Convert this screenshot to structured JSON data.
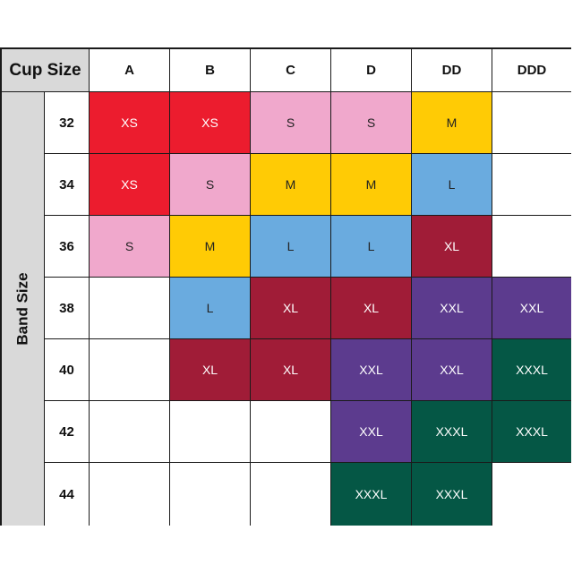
{
  "corner_label": "Cup Size",
  "band_label": "Band Size",
  "cups": [
    "A",
    "B",
    "C",
    "D",
    "DD",
    "DDD"
  ],
  "bands": [
    "32",
    "34",
    "36",
    "38",
    "40",
    "42",
    "44"
  ],
  "grid": [
    [
      "XS",
      "XS",
      "S",
      "S",
      "M",
      ""
    ],
    [
      "XS",
      "S",
      "M",
      "M",
      "L",
      ""
    ],
    [
      "S",
      "M",
      "L",
      "L",
      "XL",
      ""
    ],
    [
      "",
      "L",
      "XL",
      "XL",
      "XXL",
      "XXL"
    ],
    [
      "",
      "XL",
      "XL",
      "XXL",
      "XXL",
      "XXXL"
    ],
    [
      "",
      "",
      "",
      "XXL",
      "XXXL",
      "XXXL"
    ],
    [
      "",
      "",
      "",
      "XXXL",
      "XXXL",
      ""
    ]
  ],
  "size_colors": {
    "XS": "#ec1c2e",
    "S": "#f0a8cc",
    "M": "#ffcb05",
    "L": "#6aabdf",
    "XL": "#a01c37",
    "XXL": "#5c3b8e",
    "XXXL": "#055745"
  },
  "dark_text_sizes": [
    "S",
    "M",
    "L"
  ]
}
